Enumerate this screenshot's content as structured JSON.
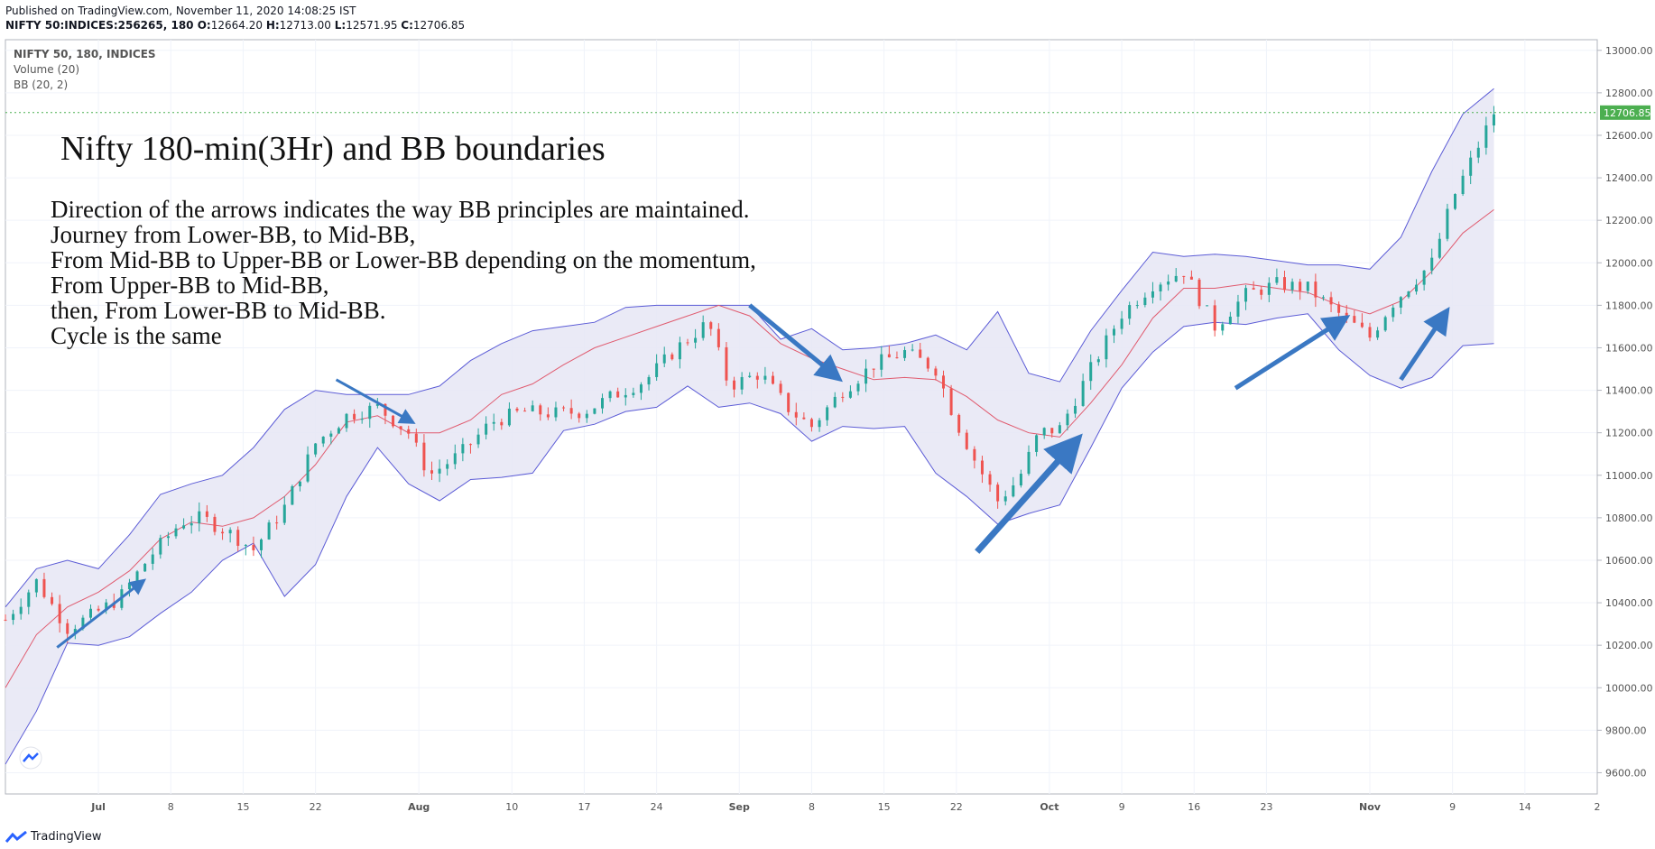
{
  "header": {
    "published": "Published on TradingView.com, November 11, 2020 14:08:25 IST",
    "symbol_line": "NIFTY 50:INDICES:256265, 180",
    "ohlc": {
      "o_label": "O:",
      "o": "12664.20",
      "h_label": "H:",
      "h": "12713.00",
      "l_label": "L:",
      "l": "12571.95",
      "c_label": "C:",
      "c": "12706.85"
    }
  },
  "legend": {
    "symbol": "NIFTY 50, 180, INDICES",
    "volume": "Volume (20)",
    "bb": "BB (20, 2)"
  },
  "annotations": {
    "title": "Nifty 180-min(3Hr) and BB boundaries",
    "lines": [
      "Direction of the arrows indicates the way BB principles are maintained.",
      "Journey from Lower-BB, to Mid-BB,",
      "From Mid-BB to Upper-BB or Lower-BB depending on the momentum,",
      "From Upper-BB to Mid-BB,",
      "then, From Lower-BB to Mid-BB.",
      "Cycle is the same"
    ]
  },
  "footer": {
    "brand": "TradingView"
  },
  "colors": {
    "up": "#26a69a",
    "down": "#ef5350",
    "band": "#5b5bd6",
    "band_fill": "#e6e6f4",
    "mid": "#e05b6f",
    "arrow": "#3a78c3",
    "price_tag": "#4caf50"
  },
  "chart_data": {
    "type": "candlestick",
    "ylim": [
      9500,
      13050
    ],
    "y_ticks": [
      "9600.00",
      "9800.00",
      "10000.00",
      "10200.00",
      "10400.00",
      "10600.00",
      "10800.00",
      "11000.00",
      "11200.00",
      "11400.00",
      "11600.00",
      "11800.00",
      "12000.00",
      "12200.00",
      "12400.00",
      "12600.00",
      "12800.00",
      "13000.00"
    ],
    "last_price": "12706.85",
    "x_ticks": [
      {
        "label": "Jul",
        "d": 0,
        "bold": true
      },
      {
        "label": "8",
        "d": 7
      },
      {
        "label": "15",
        "d": 14
      },
      {
        "label": "22",
        "d": 21
      },
      {
        "label": "Aug",
        "d": 31,
        "bold": true
      },
      {
        "label": "10",
        "d": 40
      },
      {
        "label": "17",
        "d": 47
      },
      {
        "label": "24",
        "d": 54
      },
      {
        "label": "Sep",
        "d": 62,
        "bold": true
      },
      {
        "label": "8",
        "d": 69
      },
      {
        "label": "15",
        "d": 76
      },
      {
        "label": "22",
        "d": 83
      },
      {
        "label": "Oct",
        "d": 92,
        "bold": true
      },
      {
        "label": "9",
        "d": 99
      },
      {
        "label": "16",
        "d": 106
      },
      {
        "label": "23",
        "d": 113
      },
      {
        "label": "Nov",
        "d": 123,
        "bold": true
      },
      {
        "label": "9",
        "d": 131
      },
      {
        "label": "14",
        "d": 138
      },
      {
        "label": "2",
        "d": 145
      }
    ],
    "x_range_days": [
      -9,
      145
    ],
    "bb_series": {
      "days": [
        -9,
        -6,
        -3,
        0,
        3,
        6,
        9,
        12,
        15,
        18,
        21,
        24,
        27,
        30,
        33,
        36,
        39,
        42,
        45,
        48,
        51,
        54,
        57,
        60,
        63,
        66,
        69,
        72,
        75,
        78,
        81,
        84,
        87,
        90,
        93,
        96,
        99,
        102,
        105,
        108,
        111,
        114,
        117,
        120,
        123,
        126,
        129,
        132,
        135
      ],
      "mid": [
        10000,
        10250,
        10380,
        10450,
        10550,
        10700,
        10780,
        10760,
        10800,
        10900,
        11050,
        11250,
        11280,
        11200,
        11200,
        11260,
        11380,
        11430,
        11520,
        11600,
        11650,
        11700,
        11750,
        11800,
        11750,
        11620,
        11550,
        11500,
        11450,
        11460,
        11450,
        11370,
        11260,
        11200,
        11180,
        11340,
        11520,
        11740,
        11880,
        11880,
        11900,
        11880,
        11860,
        11800,
        11760,
        11820,
        11960,
        12140,
        12250
      ],
      "upper": [
        10380,
        10560,
        10600,
        10560,
        10720,
        10910,
        10960,
        11000,
        11130,
        11310,
        11400,
        11380,
        11380,
        11380,
        11420,
        11540,
        11620,
        11680,
        11700,
        11720,
        11790,
        11800,
        11800,
        11800,
        11800,
        11640,
        11690,
        11590,
        11600,
        11620,
        11660,
        11590,
        11770,
        11480,
        11440,
        11680,
        11870,
        12050,
        12030,
        12040,
        12030,
        12010,
        11990,
        11990,
        11970,
        12120,
        12430,
        12700,
        12820
      ],
      "lower": [
        9640,
        9890,
        10210,
        10200,
        10240,
        10350,
        10450,
        10600,
        10680,
        10430,
        10580,
        10900,
        11130,
        10960,
        10880,
        10980,
        10990,
        11010,
        11210,
        11240,
        11300,
        11320,
        11420,
        11320,
        11340,
        11290,
        11160,
        11230,
        11220,
        11230,
        11010,
        10900,
        10770,
        10820,
        10860,
        11130,
        11410,
        11580,
        11700,
        11720,
        11710,
        11740,
        11760,
        11590,
        11470,
        11410,
        11460,
        11610,
        11620
      ]
    },
    "price_path": {
      "days": [
        -9,
        -6,
        -3,
        -1,
        2,
        5,
        8,
        10,
        13,
        15,
        18,
        21,
        24,
        27,
        30,
        32,
        35,
        38,
        41,
        44,
        47,
        50,
        53,
        56,
        59,
        61,
        64,
        67,
        69,
        72,
        75,
        78,
        81,
        83,
        85,
        87,
        89,
        91,
        93,
        96,
        99,
        102,
        105,
        108,
        111,
        114,
        117,
        120,
        123,
        125,
        127,
        129,
        131,
        133,
        135
      ],
      "close": [
        10320,
        10500,
        10280,
        10330,
        10420,
        10620,
        10780,
        10800,
        10720,
        10650,
        10850,
        11150,
        11280,
        11320,
        11200,
        11000,
        11100,
        11250,
        11300,
        11290,
        11300,
        11380,
        11450,
        11600,
        11720,
        11420,
        11480,
        11300,
        11230,
        11400,
        11520,
        11580,
        11500,
        11250,
        11050,
        10880,
        10980,
        11200,
        11220,
        11500,
        11760,
        11900,
        11960,
        11700,
        11850,
        11900,
        11880,
        11760,
        11650,
        11800,
        11900,
        12000,
        12300,
        12500,
        12706
      ]
    },
    "arrows": [
      {
        "from": [
          -4,
          10190
        ],
        "to": [
          4,
          10490
        ]
      },
      {
        "from": [
          23,
          11450
        ],
        "to": [
          30,
          11260
        ]
      },
      {
        "from": [
          63,
          11800
        ],
        "to": [
          71,
          11480
        ]
      },
      {
        "from": [
          85,
          10640
        ],
        "to": [
          94,
          11130
        ]
      },
      {
        "from": [
          110,
          11410
        ],
        "to": [
          120,
          11720
        ]
      },
      {
        "from": [
          126,
          11450
        ],
        "to": [
          130,
          11740
        ]
      }
    ]
  }
}
